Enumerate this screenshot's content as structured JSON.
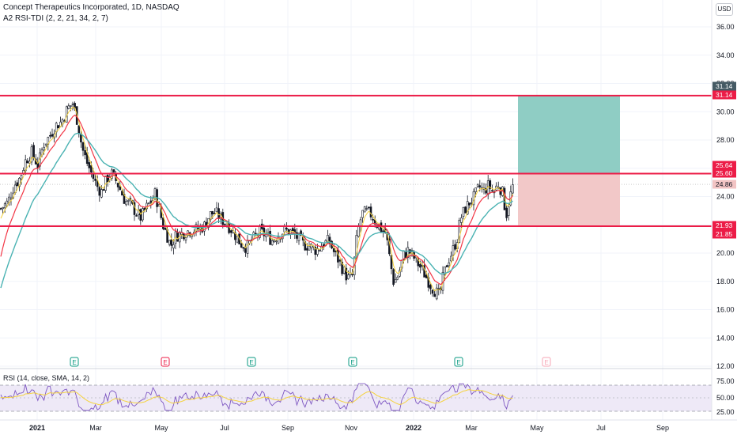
{
  "header": {
    "symbol_line": "Concept Therapeutics Incorporated, 1D, NASDAQ",
    "indicator_line": "A2 RSI-TDI (2, 2, 21, 34, 2, 7)",
    "currency": "USD"
  },
  "price_axis": {
    "ticks": [
      "36.00",
      "34.00",
      "32.00",
      "30.00",
      "28.00",
      "26.00",
      "24.00",
      "22.00",
      "20.00",
      "18.00",
      "16.00",
      "14.00",
      "12.00"
    ]
  },
  "price_tags": [
    {
      "text": "31.14",
      "bg": "#455a64"
    },
    {
      "text": "31.14",
      "bg": "#ec1c47"
    },
    {
      "text": "25.64",
      "bg": "#ec1c47"
    },
    {
      "text": "25.60",
      "bg": "#ec1c47"
    },
    {
      "text": "24.86",
      "bg": "#f2c4c4"
    },
    {
      "text": "21.93",
      "bg": "#ec1c47"
    },
    {
      "text": "21.85",
      "bg": "#ec1c47"
    }
  ],
  "time_axis": [
    "2021",
    "Mar",
    "May",
    "Jul",
    "Sep",
    "Nov",
    "2022",
    "Mar",
    "May",
    "Jul",
    "Sep"
  ],
  "earnings_markers": [
    "E",
    "E",
    "E",
    "E",
    "E",
    "E"
  ],
  "rsi": {
    "label": "RSI (14, close, SMA, 14, 2)",
    "ticks": [
      "75.00",
      "50.00",
      "25.00"
    ]
  },
  "levels": [
    31.14,
    25.62,
    21.9
  ],
  "position": {
    "entry": 25.6,
    "target": 31.14,
    "stop": 21.9
  },
  "colors": {
    "level_line": "#ec1c47",
    "candle": "#131722",
    "ema_red": "#f23645",
    "ema_teal": "#4bb3b3",
    "ema_yellow": "#f5d33f",
    "profit_zone": "#8fcdc4",
    "loss_zone": "#f2c8c8"
  }
}
